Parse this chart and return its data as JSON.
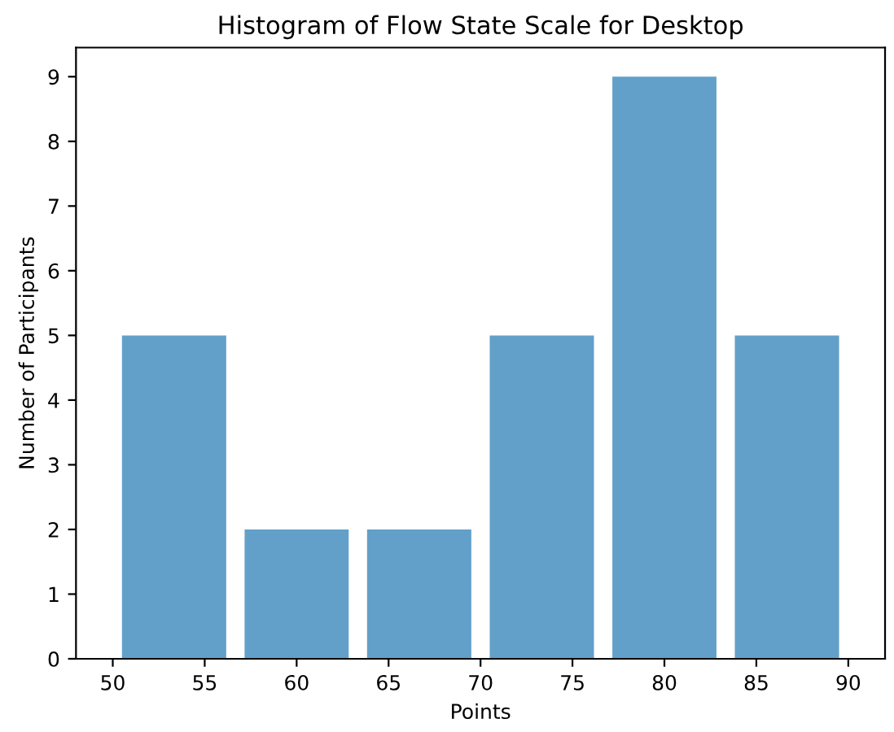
{
  "chart_data": {
    "type": "histogram",
    "title": "Histogram of Flow State Scale for Desktop",
    "xlabel": "Points",
    "ylabel": "Number of Participants",
    "bins": [
      50,
      56.67,
      63.33,
      70,
      76.67,
      83.33,
      90
    ],
    "values": [
      5,
      2,
      2,
      5,
      9,
      5
    ],
    "color": "#62a0ca",
    "xlim": [
      48,
      92
    ],
    "xticks": [
      50,
      55,
      60,
      65,
      70,
      75,
      80,
      85,
      90
    ],
    "ylim": [
      0,
      9.45
    ],
    "yticks": [
      0,
      1,
      2,
      3,
      4,
      5,
      6,
      7,
      8,
      9
    ],
    "grid": false
  }
}
